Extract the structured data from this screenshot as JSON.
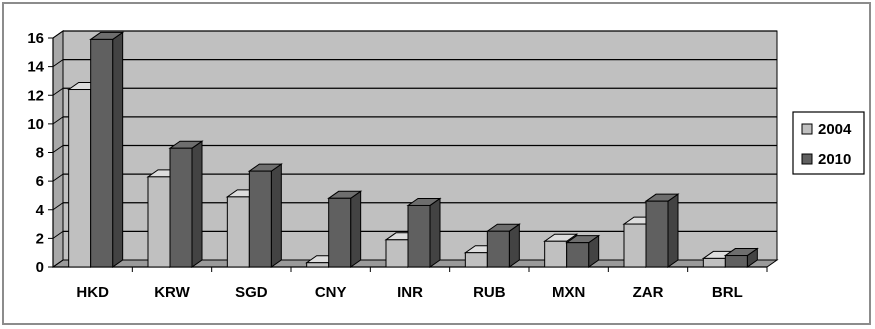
{
  "chart_data": {
    "type": "bar",
    "title": "",
    "xlabel": "",
    "ylabel": "",
    "ylim": [
      0,
      16
    ],
    "yticks": [
      0,
      2,
      4,
      6,
      8,
      10,
      12,
      14,
      16
    ],
    "grid": true,
    "legend_position": "right",
    "categories": [
      "HKD",
      "KRW",
      "SGD",
      "CNY",
      "INR",
      "RUB",
      "MXN",
      "ZAR",
      "BRL"
    ],
    "series": [
      {
        "name": "2004",
        "color": "#c0c0c0",
        "values": [
          12.4,
          6.3,
          4.9,
          0.3,
          1.9,
          1.0,
          1.8,
          3.0,
          0.6
        ]
      },
      {
        "name": "2010",
        "color": "#606060",
        "values": [
          15.9,
          8.3,
          6.7,
          4.8,
          4.3,
          2.5,
          1.7,
          4.6,
          0.8
        ]
      }
    ],
    "plot_background": "#c0c0c0"
  }
}
